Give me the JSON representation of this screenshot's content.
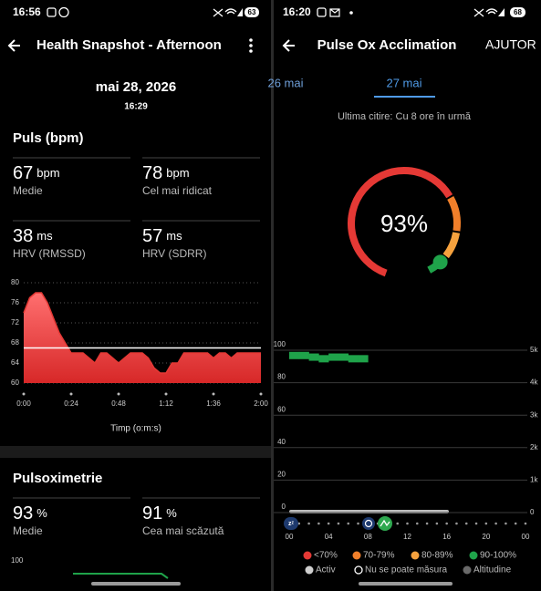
{
  "left": {
    "status": {
      "time": "16:56",
      "battery": "63"
    },
    "header": {
      "title": "Health Snapshot - Afternoon"
    },
    "date": "mai 28, 2026",
    "time": "16:29",
    "pulse": {
      "title": "Puls (bpm)",
      "stats": [
        {
          "value": 67,
          "unit": "bpm",
          "label": "Medie"
        },
        {
          "value": 78,
          "unit": "bpm",
          "label": "Cel mai ridicat"
        },
        {
          "value": 38,
          "unit": "ms",
          "label": "HRV (RMSSD)"
        },
        {
          "value": 57,
          "unit": "ms",
          "label": "HRV (SDRR)"
        }
      ],
      "chart": {
        "type": "area",
        "x": [
          0,
          3,
          6,
          9,
          12,
          15,
          18,
          21,
          24,
          27,
          30,
          33,
          36,
          39,
          42,
          45,
          48,
          51,
          54,
          57,
          60,
          63,
          66,
          69,
          72,
          75,
          78,
          81,
          84,
          87,
          90,
          93,
          96,
          99,
          102,
          105,
          108,
          111,
          114,
          117,
          120
        ],
        "values": [
          74,
          77,
          78,
          78,
          76,
          73,
          70,
          68,
          66,
          66,
          66,
          65,
          64,
          66,
          66,
          65,
          64,
          65,
          66,
          66,
          66,
          65,
          63,
          62,
          62,
          64,
          64,
          66,
          66,
          66,
          66,
          66,
          65,
          66,
          66,
          65,
          66,
          66,
          66,
          66,
          66
        ],
        "color": "#e53935",
        "xlim": [
          0,
          120
        ],
        "ylim": [
          60,
          80
        ],
        "yticks": [
          60,
          64,
          68,
          72,
          76,
          80
        ],
        "xticks": [
          {
            "value": 0,
            "label": "0:00"
          },
          {
            "value": 24,
            "label": "0:24"
          },
          {
            "value": 48,
            "label": "0:48"
          },
          {
            "value": 72,
            "label": "1:12"
          },
          {
            "value": 96,
            "label": "1:36"
          },
          {
            "value": 120,
            "label": "2:00"
          }
        ],
        "xlabel": "Timp (o:m:s)"
      }
    },
    "spo2": {
      "title": "Pulsoximetrie",
      "stats": [
        {
          "value": 93,
          "unit": "%",
          "label": "Medie"
        },
        {
          "value": 91,
          "unit": "%",
          "label": "Cea mai scăzută"
        }
      ],
      "ytick": 100
    }
  },
  "right": {
    "status": {
      "time": "16:20",
      "battery": "68"
    },
    "header": {
      "title": "Pulse Ox Acclimation",
      "action": "AJUTOR"
    },
    "tabs": [
      "26 mai",
      "27 mai"
    ],
    "last_reading": "Ultima citire: Cu 8 ore în urmă",
    "gauge": {
      "value": 93,
      "label": "93%"
    },
    "chart": {
      "type": "bar",
      "x": [
        0,
        1,
        2,
        3,
        4,
        5,
        6,
        7
      ],
      "values": [
        99,
        99,
        98,
        97,
        98,
        98,
        97,
        97
      ],
      "color": "#1fa34a",
      "xlim": [
        0,
        24
      ],
      "ylim": [
        0,
        100
      ],
      "yticks": [
        0,
        20,
        40,
        60,
        80,
        100
      ],
      "y2lim": [
        0,
        5000
      ],
      "y2ticks": [
        {
          "value": 0,
          "label": "0"
        },
        {
          "value": 1000,
          "label": "1k"
        },
        {
          "value": 2000,
          "label": "2k"
        },
        {
          "value": 3000,
          "label": "3k"
        },
        {
          "value": 4000,
          "label": "4k"
        },
        {
          "value": 5000,
          "label": "5k"
        }
      ],
      "xticks": [
        {
          "value": 0,
          "label": "00"
        },
        {
          "value": 4,
          "label": "04"
        },
        {
          "value": 8,
          "label": "08"
        },
        {
          "value": 12,
          "label": "12"
        },
        {
          "value": 16,
          "label": "16"
        },
        {
          "value": 20,
          "label": "20"
        },
        {
          "value": 24,
          "label": "00"
        }
      ]
    },
    "legend": [
      {
        "label": "<70%",
        "color": "#e53935"
      },
      {
        "label": "70-79%",
        "color": "#f07f2a"
      },
      {
        "label": "80-89%",
        "color": "#f6a23e"
      },
      {
        "label": "90-100%",
        "color": "#1fa34a"
      },
      {
        "label": "Activ",
        "color": "#cfcfcf"
      },
      {
        "label": "Nu se poate măsura",
        "color": "#ffffff",
        "hollow": true
      },
      {
        "label": "Altitudine",
        "color": "#6a6a6a"
      }
    ]
  }
}
